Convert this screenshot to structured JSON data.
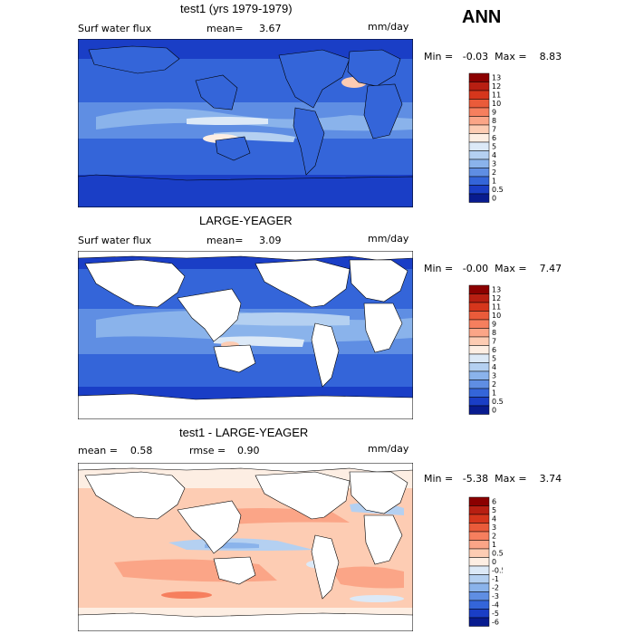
{
  "season": "ANN",
  "panels": [
    {
      "title": "test1 (yrs 1979-1979)",
      "left_label": "Surf water flux",
      "mean_label": "mean=",
      "mean_value": "3.67",
      "units": "mm/day",
      "min_max": "Min =   -0.03  Max =    8.83"
    },
    {
      "title": "LARGE-YEAGER",
      "left_label": "Surf water flux",
      "mean_label": "mean=",
      "mean_value": "3.09",
      "units": "mm/day",
      "min_max": "Min =   -0.00  Max =    7.47"
    },
    {
      "title": "test1 - LARGE-YEAGER",
      "left_label": "mean =    0.58",
      "mean_label": "rmse =",
      "mean_value": "0.90",
      "units": "mm/day",
      "min_max": "Min =   -5.38  Max =    3.74"
    }
  ],
  "chart_data": [
    {
      "type": "heatmap",
      "title": "test1 (yrs 1979-1979)",
      "variable": "Surf water flux",
      "units": "mm/day",
      "mean": 3.67,
      "min": -0.03,
      "max": 8.83,
      "colorbar": {
        "labels": [
          "13",
          "12",
          "11",
          "10",
          "9",
          "8",
          "7",
          "6",
          "5",
          "4",
          "3",
          "2",
          "1",
          "0.5",
          "0"
        ],
        "colors": [
          "#8b0000",
          "#b81f12",
          "#d6361c",
          "#ea5b3a",
          "#f67f5e",
          "#fba587",
          "#fdccb3",
          "#fdeee3",
          "#dce9f7",
          "#b4d0f1",
          "#8ab3eb",
          "#5f8ee3",
          "#3465d9",
          "#1a3ec6",
          "#081b8f"
        ]
      }
    },
    {
      "type": "heatmap",
      "title": "LARGE-YEAGER",
      "variable": "Surf water flux",
      "units": "mm/day",
      "mean": 3.09,
      "min": -0.0,
      "max": 7.47,
      "colorbar": {
        "labels": [
          "13",
          "12",
          "11",
          "10",
          "9",
          "8",
          "7",
          "6",
          "5",
          "4",
          "3",
          "2",
          "1",
          "0.5",
          "0"
        ],
        "colors": [
          "#8b0000",
          "#b81f12",
          "#d6361c",
          "#ea5b3a",
          "#f67f5e",
          "#fba587",
          "#fdccb3",
          "#fdeee3",
          "#dce9f7",
          "#b4d0f1",
          "#8ab3eb",
          "#5f8ee3",
          "#3465d9",
          "#1a3ec6",
          "#081b8f"
        ]
      }
    },
    {
      "type": "heatmap",
      "title": "test1 - LARGE-YEAGER",
      "units": "mm/day",
      "mean": 0.58,
      "rmse": 0.9,
      "min": -5.38,
      "max": 3.74,
      "colorbar": {
        "labels": [
          "6",
          "5",
          "4",
          "3",
          "2",
          "1",
          "0.5",
          "0",
          "-0.5",
          "-1",
          "-2",
          "-3",
          "-4",
          "-5",
          "-6"
        ],
        "colors": [
          "#8b0000",
          "#b81f12",
          "#d6361c",
          "#ea5b3a",
          "#f67f5e",
          "#fba587",
          "#fdccb3",
          "#fdeee3",
          "#dce9f7",
          "#b4d0f1",
          "#8ab3eb",
          "#5f8ee3",
          "#3465d9",
          "#1a3ec6",
          "#081b8f"
        ]
      }
    }
  ]
}
